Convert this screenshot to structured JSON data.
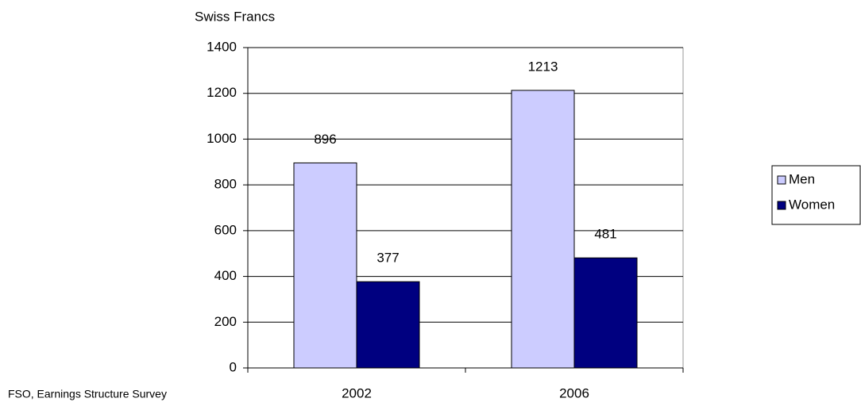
{
  "chart_data": {
    "type": "bar",
    "y_label": "Swiss Francs",
    "source": "FSO, Earnings Structure Survey",
    "categories": [
      "2002",
      "2006"
    ],
    "series": [
      {
        "name": "Men",
        "color": "#ccccff",
        "values": [
          896,
          1213
        ]
      },
      {
        "name": "Women",
        "color": "#000080",
        "values": [
          377,
          481
        ]
      }
    ],
    "ylim": [
      0,
      1400
    ],
    "yticks": [
      0,
      200,
      400,
      600,
      800,
      1000,
      1200,
      1400
    ],
    "grid": true,
    "legend": "right"
  }
}
